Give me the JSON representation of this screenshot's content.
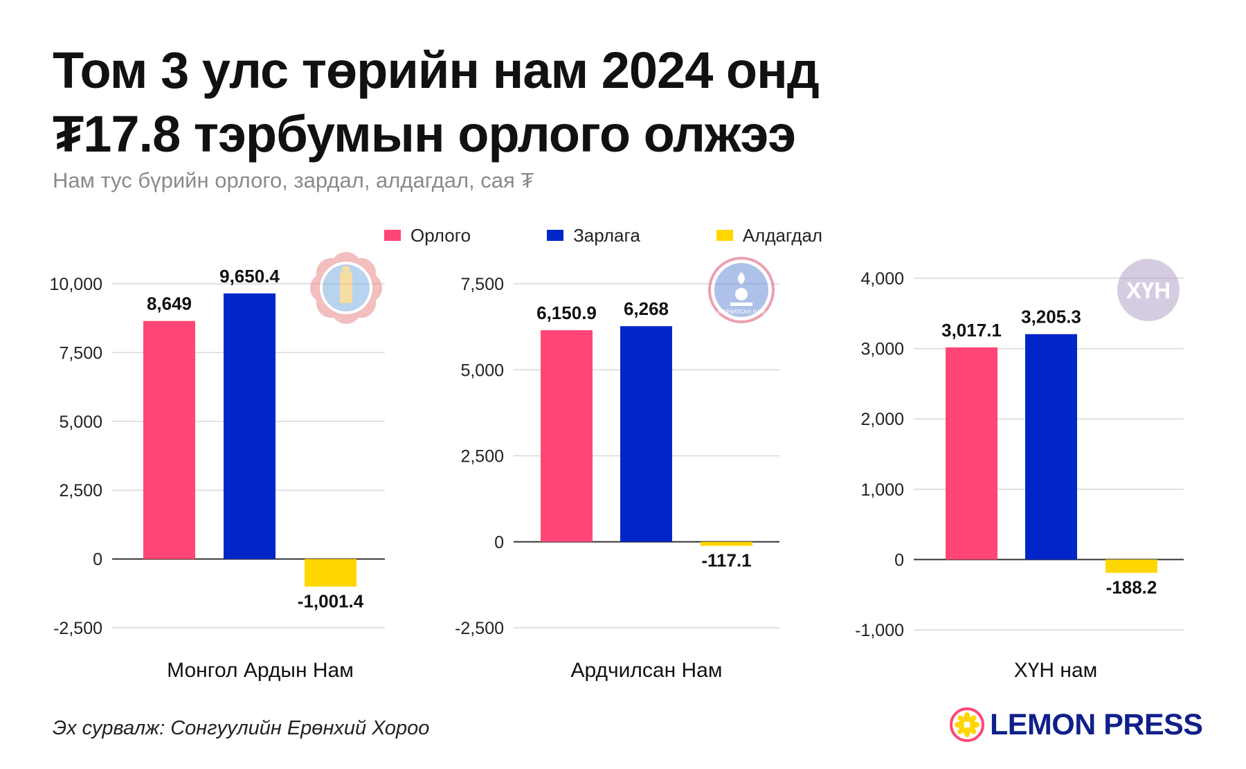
{
  "title_line1": "Том 3 улс төрийн нам 2024 онд",
  "title_line2": "₮17.8 тэрбумын орлого олжээ",
  "subtitle": "Нам тус бүрийн орлого, зардал, алдагдал, сая ₮",
  "colors": {
    "income": "#ff4676",
    "expense": "#0026c8",
    "loss": "#ffd600",
    "grid": "#d7d7d7"
  },
  "legend": [
    {
      "label": "Орлого",
      "color": "#ff4676"
    },
    {
      "label": "Зарлага",
      "color": "#0026c8"
    },
    {
      "label": "Алдагдал",
      "color": "#ffd600"
    }
  ],
  "chart_data": [
    {
      "type": "bar",
      "category": "Монгол Ардын Нам",
      "series": [
        {
          "name": "Орлого",
          "value": 8649
        },
        {
          "name": "Зарлага",
          "value": 9650.4
        },
        {
          "name": "Алдагдал",
          "value": -1001.4
        }
      ],
      "value_labels": [
        "8,649",
        "9,650.4",
        "-1,001.4"
      ],
      "ylim": [
        -2500,
        10000
      ],
      "yticks": [
        10000,
        7500,
        5000,
        2500,
        0,
        -2500
      ],
      "ytick_labels": [
        "10,000",
        "7,500",
        "5,000",
        "2,500",
        "0",
        "-2,500"
      ],
      "logo": "mpp-party-emblem-icon"
    },
    {
      "type": "bar",
      "category": "Ардчилсан Нам",
      "series": [
        {
          "name": "Орлого",
          "value": 6150.9
        },
        {
          "name": "Зарлага",
          "value": 6268
        },
        {
          "name": "Алдагдал",
          "value": -117.1
        }
      ],
      "value_labels": [
        "6,150.9",
        "6,268",
        "-117.1"
      ],
      "ylim": [
        -2500,
        7500
      ],
      "yticks": [
        7500,
        5000,
        2500,
        0,
        -2500
      ],
      "ytick_labels": [
        "7,500",
        "5,000",
        "2,500",
        "0",
        "-2,500"
      ],
      "logo": "democratic-party-emblem-icon",
      "logo_text": "АРДЧИЛСАН НАМ"
    },
    {
      "type": "bar",
      "category": "ХҮН нам",
      "series": [
        {
          "name": "Орлого",
          "value": 3017.1
        },
        {
          "name": "Зарлага",
          "value": 3205.3
        },
        {
          "name": "Алдагдал",
          "value": -188.2
        }
      ],
      "value_labels": [
        "3,017.1",
        "3,205.3",
        "-188.2"
      ],
      "ylim": [
        -1000,
        4000
      ],
      "yticks": [
        4000,
        3000,
        2000,
        1000,
        0,
        -1000
      ],
      "ytick_labels": [
        "4,000",
        "3,000",
        "2,000",
        "1,000",
        "0",
        "-1,000"
      ],
      "logo": "hun-party-emblem-icon",
      "logo_text": "ХҮН"
    }
  ],
  "source": "Эх сурвалж: Сонгуулийн Ерөнхий Хороо",
  "brand": "LEMON PRESS"
}
